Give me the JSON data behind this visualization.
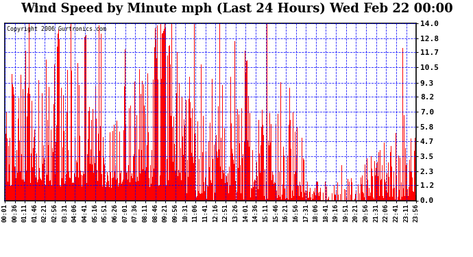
{
  "title": "Wind Speed by Minute mph (Last 24 Hours) Wed Feb 22 00:00",
  "copyright": "Copyright 2006 Gurtronics.com",
  "yticks": [
    0.0,
    1.2,
    2.3,
    3.5,
    4.7,
    5.8,
    7.0,
    8.2,
    9.3,
    10.5,
    11.7,
    12.8,
    14.0
  ],
  "ylim": [
    0.0,
    14.0
  ],
  "xtick_labels": [
    "00:01",
    "00:36",
    "01:11",
    "01:46",
    "02:21",
    "02:56",
    "03:31",
    "04:06",
    "04:41",
    "05:16",
    "05:51",
    "06:26",
    "07:01",
    "07:36",
    "08:11",
    "08:46",
    "09:21",
    "09:56",
    "10:31",
    "11:06",
    "11:41",
    "12:16",
    "12:51",
    "13:26",
    "14:01",
    "14:36",
    "15:11",
    "15:46",
    "16:21",
    "16:56",
    "17:31",
    "18:06",
    "18:41",
    "19:16",
    "19:51",
    "20:21",
    "20:56",
    "21:31",
    "22:06",
    "22:41",
    "23:11",
    "23:56"
  ],
  "bar_color": "#ff0000",
  "bg_color": "#ffffff",
  "grid_color": "#0000ff",
  "title_fontsize": 13,
  "axis_fontsize": 8
}
